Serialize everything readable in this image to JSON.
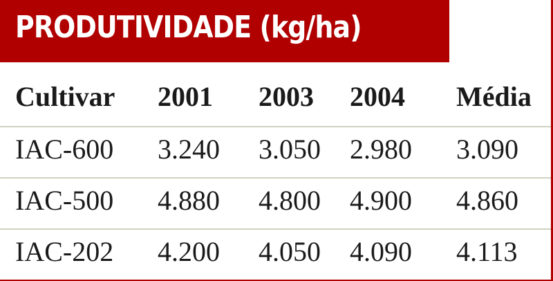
{
  "header": {
    "title": "PRODUTIVIDADE (kg/ha)"
  },
  "table": {
    "columns": [
      "Cultivar",
      "2001",
      "2003",
      "2004",
      "Média"
    ],
    "rows": [
      [
        "IAC-600",
        "3.240",
        "3.050",
        "2.980",
        "3.090"
      ],
      [
        "IAC-500",
        "4.880",
        "4.800",
        "4.900",
        "4.860"
      ],
      [
        "IAC-202",
        "4.200",
        "4.050",
        "4.090",
        "4.113"
      ]
    ]
  }
}
